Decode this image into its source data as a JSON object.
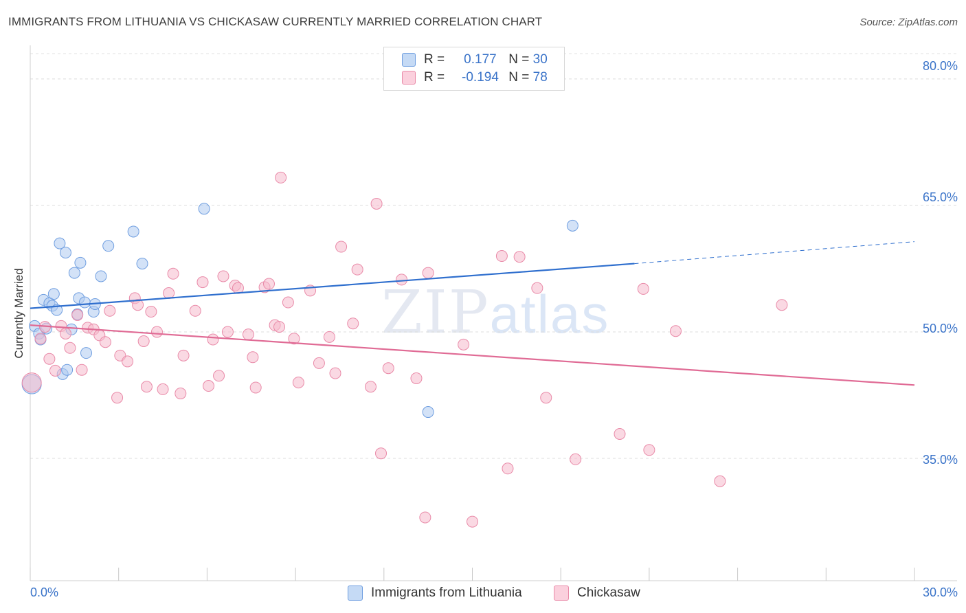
{
  "header": {
    "title": "IMMIGRANTS FROM LITHUANIA VS CHICKASAW CURRENTLY MARRIED CORRELATION CHART",
    "source": "Source: ZipAtlas.com"
  },
  "watermark": {
    "part1": "ZIP",
    "part2": "atlas"
  },
  "legend": {
    "series1": {
      "r_label": "R =",
      "r_value": "0.177",
      "n_label": "N =",
      "n_value": "30",
      "color": "#aecbf0"
    },
    "series2": {
      "r_label": "R =",
      "r_value": "-0.194",
      "n_label": "N =",
      "n_value": "78",
      "color": "#f6b9cc"
    }
  },
  "chart_data": {
    "type": "scatter",
    "title": "IMMIGRANTS FROM LITHUANIA VS CHICKASAW CURRENTLY MARRIED CORRELATION CHART",
    "xlabel": "",
    "ylabel": "Currently Married",
    "xlim": [
      0,
      30
    ],
    "ylim": [
      20.5,
      83
    ],
    "x_tick_labels": [
      "0.0%",
      "30.0%"
    ],
    "y_tick_labels": [
      "80.0%",
      "65.0%",
      "50.0%",
      "35.0%"
    ],
    "y_ticks": [
      80,
      65,
      50,
      35
    ],
    "grid": true,
    "legend_position": "top-center",
    "series": [
      {
        "name": "Immigrants from Lithuania",
        "color": "#aecbf0",
        "stroke": "#6f9ee0",
        "trend": {
          "x": [
            0,
            20.5
          ],
          "y": [
            52.8,
            58.1
          ],
          "dashed_to": [
            30,
            60.7
          ],
          "color": "#2f6fce"
        },
        "points": [
          [
            0.15,
            50.7
          ],
          [
            0.3,
            49.8
          ],
          [
            0.35,
            49.1
          ],
          [
            0.45,
            53.8
          ],
          [
            0.55,
            50.4
          ],
          [
            0.65,
            53.4
          ],
          [
            0.75,
            53.1
          ],
          [
            0.8,
            54.5
          ],
          [
            0.9,
            52.6
          ],
          [
            1.0,
            60.5
          ],
          [
            1.2,
            59.4
          ],
          [
            1.1,
            45.0
          ],
          [
            1.25,
            45.5
          ],
          [
            1.4,
            50.3
          ],
          [
            1.5,
            57.0
          ],
          [
            1.6,
            52.1
          ],
          [
            1.65,
            54.0
          ],
          [
            1.7,
            58.2
          ],
          [
            1.85,
            53.5
          ],
          [
            1.9,
            47.5
          ],
          [
            2.15,
            52.4
          ],
          [
            2.2,
            53.3
          ],
          [
            2.4,
            56.6
          ],
          [
            2.65,
            60.2
          ],
          [
            3.5,
            61.9
          ],
          [
            3.8,
            58.1
          ],
          [
            5.9,
            64.6
          ],
          [
            13.5,
            40.5
          ],
          [
            18.4,
            62.6
          ],
          [
            0.05,
            43.8
          ]
        ]
      },
      {
        "name": "Chickasaw",
        "color": "#f6b9cc",
        "stroke": "#e98aa8",
        "trend": {
          "x": [
            0,
            30
          ],
          "y": [
            50.8,
            43.7
          ],
          "color": "#e06b95"
        },
        "points": [
          [
            0.05,
            44.0
          ],
          [
            0.35,
            49.2
          ],
          [
            0.5,
            50.6
          ],
          [
            0.65,
            46.8
          ],
          [
            0.85,
            45.4
          ],
          [
            1.05,
            50.7
          ],
          [
            1.2,
            49.8
          ],
          [
            1.35,
            48.1
          ],
          [
            1.6,
            52.0
          ],
          [
            1.75,
            45.5
          ],
          [
            1.95,
            50.5
          ],
          [
            2.15,
            50.3
          ],
          [
            2.35,
            49.6
          ],
          [
            2.55,
            48.8
          ],
          [
            2.7,
            52.5
          ],
          [
            2.95,
            42.2
          ],
          [
            3.05,
            47.2
          ],
          [
            3.3,
            46.5
          ],
          [
            3.55,
            54.0
          ],
          [
            3.65,
            53.2
          ],
          [
            3.85,
            48.9
          ],
          [
            3.95,
            43.5
          ],
          [
            4.1,
            52.4
          ],
          [
            4.3,
            50.0
          ],
          [
            4.5,
            43.2
          ],
          [
            4.7,
            54.6
          ],
          [
            4.85,
            56.9
          ],
          [
            5.1,
            42.7
          ],
          [
            5.2,
            47.2
          ],
          [
            5.6,
            52.5
          ],
          [
            5.85,
            55.9
          ],
          [
            6.05,
            43.6
          ],
          [
            6.2,
            49.1
          ],
          [
            6.4,
            44.8
          ],
          [
            6.55,
            56.6
          ],
          [
            6.7,
            50.0
          ],
          [
            6.95,
            55.5
          ],
          [
            7.05,
            55.2
          ],
          [
            7.4,
            49.7
          ],
          [
            7.55,
            47.0
          ],
          [
            7.65,
            43.4
          ],
          [
            7.95,
            55.3
          ],
          [
            8.1,
            55.7
          ],
          [
            8.3,
            50.8
          ],
          [
            8.45,
            50.6
          ],
          [
            8.75,
            53.5
          ],
          [
            8.95,
            49.2
          ],
          [
            9.1,
            44.0
          ],
          [
            9.5,
            54.9
          ],
          [
            9.8,
            46.3
          ],
          [
            10.15,
            49.4
          ],
          [
            10.35,
            45.1
          ],
          [
            10.55,
            60.1
          ],
          [
            10.95,
            51.0
          ],
          [
            11.1,
            57.4
          ],
          [
            11.55,
            43.5
          ],
          [
            11.75,
            65.2
          ],
          [
            11.9,
            35.6
          ],
          [
            12.15,
            45.7
          ],
          [
            12.6,
            56.2
          ],
          [
            13.1,
            44.5
          ],
          [
            13.4,
            28.0
          ],
          [
            13.5,
            57.0
          ],
          [
            14.7,
            48.5
          ],
          [
            15.0,
            27.5
          ],
          [
            16.0,
            59.0
          ],
          [
            16.2,
            33.8
          ],
          [
            16.6,
            58.9
          ],
          [
            17.2,
            55.2
          ],
          [
            17.5,
            42.2
          ],
          [
            18.5,
            34.9
          ],
          [
            20.0,
            37.9
          ],
          [
            20.8,
            55.1
          ],
          [
            21.0,
            36.0
          ],
          [
            21.9,
            50.1
          ],
          [
            23.4,
            32.3
          ],
          [
            25.5,
            53.2
          ],
          [
            8.5,
            68.3
          ]
        ]
      }
    ]
  },
  "bottom_legend": {
    "item1": {
      "label": "Immigrants from Lithuania",
      "color": "#aecbf0"
    },
    "item2": {
      "label": "Chickasaw",
      "color": "#f6b9cc"
    }
  }
}
